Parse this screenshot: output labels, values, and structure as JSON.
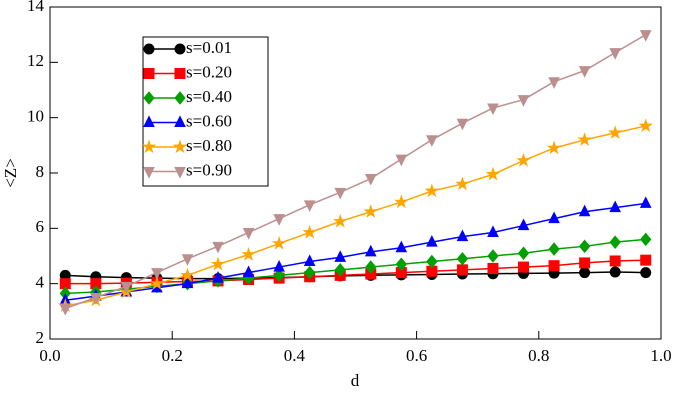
{
  "chart_data": {
    "type": "line",
    "x_label": "d",
    "y_label": "<Z>",
    "x": [
      0.025,
      0.075,
      0.125,
      0.175,
      0.225,
      0.275,
      0.325,
      0.375,
      0.425,
      0.475,
      0.525,
      0.575,
      0.625,
      0.675,
      0.725,
      0.775,
      0.825,
      0.875,
      0.925,
      0.975
    ],
    "series": [
      {
        "name": "s=0.01",
        "color": "#000000",
        "marker": "circle",
        "values": [
          4.3,
          4.25,
          4.22,
          4.2,
          4.18,
          4.18,
          4.2,
          4.22,
          4.25,
          4.28,
          4.3,
          4.32,
          4.33,
          4.35,
          4.36,
          4.37,
          4.38,
          4.4,
          4.42,
          4.4
        ]
      },
      {
        "name": "s=0.20",
        "color": "#ff0000",
        "marker": "square",
        "values": [
          4.0,
          4.0,
          4.02,
          4.05,
          4.08,
          4.1,
          4.15,
          4.2,
          4.25,
          4.3,
          4.35,
          4.4,
          4.45,
          4.5,
          4.55,
          4.6,
          4.65,
          4.75,
          4.82,
          4.85
        ]
      },
      {
        "name": "s=0.40",
        "color": "#00a000",
        "marker": "diamond",
        "values": [
          3.65,
          3.7,
          3.8,
          3.9,
          4.0,
          4.1,
          4.2,
          4.3,
          4.4,
          4.5,
          4.6,
          4.7,
          4.8,
          4.9,
          5.0,
          5.1,
          5.25,
          5.35,
          5.5,
          5.6
        ]
      },
      {
        "name": "s=0.60",
        "color": "#0000ff",
        "marker": "triangle-up",
        "values": [
          3.4,
          3.55,
          3.7,
          3.85,
          4.0,
          4.2,
          4.4,
          4.6,
          4.8,
          4.95,
          5.15,
          5.3,
          5.5,
          5.7,
          5.85,
          6.1,
          6.35,
          6.6,
          6.75,
          6.9
        ]
      },
      {
        "name": "s=0.80",
        "color": "#ffa500",
        "marker": "star",
        "values": [
          3.2,
          3.4,
          3.7,
          4.0,
          4.3,
          4.7,
          5.05,
          5.45,
          5.85,
          6.25,
          6.6,
          6.95,
          7.35,
          7.6,
          7.95,
          8.45,
          8.9,
          9.2,
          9.45,
          9.7
        ]
      },
      {
        "name": "s=0.90",
        "color": "#bc8f8f",
        "marker": "triangle-down",
        "values": [
          3.1,
          3.5,
          3.9,
          4.4,
          4.9,
          5.35,
          5.85,
          6.35,
          6.85,
          7.3,
          7.8,
          8.5,
          9.2,
          9.8,
          10.35,
          10.65,
          11.3,
          11.7,
          12.35,
          13.0
        ]
      }
    ],
    "xlim": [
      0,
      1
    ],
    "ylim": [
      2,
      14
    ],
    "xticks": [
      {
        "value": 0,
        "label": "0.0"
      },
      0.2,
      0.4,
      0.6,
      0.8,
      {
        "value": 1,
        "label": "1.0"
      }
    ],
    "yticks": [
      2,
      4,
      6,
      8,
      10,
      12,
      14
    ],
    "legend": "upper-left"
  }
}
